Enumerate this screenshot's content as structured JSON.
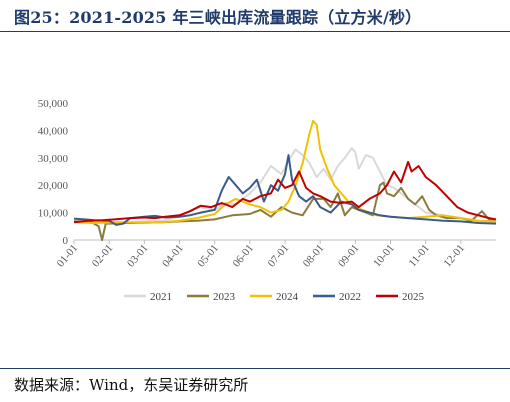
{
  "header": {
    "title": "图25：2021-2025 年三峡出库流量跟踪（立方米/秒）"
  },
  "footer": {
    "source": "数据来源：Wind，东吴证券研究所"
  },
  "chart_data": {
    "type": "line",
    "title": "2021-2025 年三峡出库流量跟踪（立方米/秒）",
    "xlabel": "",
    "ylabel": "",
    "x_categories": [
      "01-01",
      "02-01",
      "03-01",
      "04-01",
      "05-01",
      "06-01",
      "07-01",
      "08-01",
      "09-01",
      "10-01",
      "11-01",
      "12-01"
    ],
    "y_ticks": [
      "0",
      "10,000",
      "20,000",
      "30,000",
      "40,000",
      "50,000"
    ],
    "ylim": [
      0,
      50000
    ],
    "legend_position": "bottom",
    "grid": false,
    "series": [
      {
        "name": "2021",
        "color": "#d9d9d9",
        "points": [
          [
            0,
            7500
          ],
          [
            0.25,
            7200
          ],
          [
            0.5,
            6800
          ],
          [
            1,
            6600
          ],
          [
            1.5,
            6400
          ],
          [
            2,
            6800
          ],
          [
            2.5,
            7000
          ],
          [
            3,
            8500
          ],
          [
            3.3,
            10500
          ],
          [
            3.6,
            12000
          ],
          [
            4,
            11000
          ],
          [
            4.3,
            13500
          ],
          [
            4.6,
            13000
          ],
          [
            5,
            17000
          ],
          [
            5.3,
            21000
          ],
          [
            5.6,
            27000
          ],
          [
            5.9,
            24000
          ],
          [
            6.1,
            29000
          ],
          [
            6.3,
            33000
          ],
          [
            6.5,
            31000
          ],
          [
            6.7,
            28000
          ],
          [
            6.9,
            23000
          ],
          [
            7.1,
            26000
          ],
          [
            7.3,
            22000
          ],
          [
            7.5,
            27000
          ],
          [
            7.7,
            30000
          ],
          [
            7.9,
            33500
          ],
          [
            8.0,
            32000
          ],
          [
            8.1,
            26000
          ],
          [
            8.3,
            31000
          ],
          [
            8.5,
            30000
          ],
          [
            8.7,
            25000
          ],
          [
            8.9,
            20000
          ],
          [
            9.1,
            19000
          ],
          [
            9.3,
            17000
          ],
          [
            9.6,
            14000
          ],
          [
            10,
            10000
          ],
          [
            10.5,
            9000
          ],
          [
            11,
            8000
          ],
          [
            11.5,
            7000
          ],
          [
            12,
            6500
          ]
        ]
      },
      {
        "name": "2023",
        "color": "#8c7b3e",
        "points": [
          [
            0,
            6800
          ],
          [
            0.5,
            6500
          ],
          [
            0.7,
            5000
          ],
          [
            0.8,
            0
          ],
          [
            0.9,
            6000
          ],
          [
            1,
            6000
          ],
          [
            1.5,
            6200
          ],
          [
            2,
            6300
          ],
          [
            2.5,
            6500
          ],
          [
            3,
            6800
          ],
          [
            3.5,
            7000
          ],
          [
            4,
            7500
          ],
          [
            4.5,
            9000
          ],
          [
            5,
            9500
          ],
          [
            5.3,
            11000
          ],
          [
            5.6,
            8500
          ],
          [
            5.9,
            12000
          ],
          [
            6.2,
            10000
          ],
          [
            6.5,
            9000
          ],
          [
            6.8,
            15000
          ],
          [
            7.1,
            15000
          ],
          [
            7.3,
            12000
          ],
          [
            7.5,
            17000
          ],
          [
            7.7,
            9000
          ],
          [
            7.9,
            12000
          ],
          [
            8.1,
            11000
          ],
          [
            8.3,
            10000
          ],
          [
            8.5,
            9000
          ],
          [
            8.7,
            20000
          ],
          [
            8.8,
            21000
          ],
          [
            8.9,
            17000
          ],
          [
            9.1,
            16000
          ],
          [
            9.3,
            19000
          ],
          [
            9.5,
            15000
          ],
          [
            9.7,
            13000
          ],
          [
            9.9,
            16000
          ],
          [
            10.1,
            11000
          ],
          [
            10.3,
            9000
          ],
          [
            10.6,
            8000
          ],
          [
            11,
            8000
          ],
          [
            11.3,
            7000
          ],
          [
            11.6,
            10500
          ],
          [
            11.8,
            7500
          ],
          [
            12,
            6800
          ]
        ]
      },
      {
        "name": "2024",
        "color": "#f5c000",
        "points": [
          [
            0,
            6500
          ],
          [
            0.5,
            6200
          ],
          [
            1,
            6400
          ],
          [
            1.5,
            6500
          ],
          [
            2,
            6300
          ],
          [
            2.5,
            6500
          ],
          [
            3,
            7000
          ],
          [
            3.5,
            8000
          ],
          [
            4,
            9500
          ],
          [
            4.3,
            13000
          ],
          [
            4.6,
            15000
          ],
          [
            5,
            13000
          ],
          [
            5.3,
            12000
          ],
          [
            5.6,
            10000
          ],
          [
            5.9,
            11000
          ],
          [
            6.1,
            14000
          ],
          [
            6.3,
            20000
          ],
          [
            6.5,
            28000
          ],
          [
            6.7,
            39000
          ],
          [
            6.8,
            43500
          ],
          [
            6.9,
            42000
          ],
          [
            7.0,
            33000
          ],
          [
            7.2,
            26000
          ],
          [
            7.4,
            20000
          ],
          [
            7.6,
            17000
          ],
          [
            7.8,
            14000
          ],
          [
            8.0,
            12000
          ],
          [
            8.3,
            10500
          ],
          [
            8.6,
            9000
          ],
          [
            9,
            8500
          ],
          [
            9.5,
            8000
          ],
          [
            10,
            8500
          ],
          [
            10.5,
            9000
          ],
          [
            11,
            8000
          ],
          [
            11.5,
            7000
          ],
          [
            12,
            6800
          ]
        ]
      },
      {
        "name": "2022",
        "color": "#3a5c8c",
        "points": [
          [
            0,
            7800
          ],
          [
            0.3,
            7500
          ],
          [
            0.6,
            7200
          ],
          [
            1,
            7000
          ],
          [
            1.2,
            5500
          ],
          [
            1.4,
            6000
          ],
          [
            1.6,
            8000
          ],
          [
            2,
            8500
          ],
          [
            2.3,
            8800
          ],
          [
            2.6,
            8200
          ],
          [
            3,
            8500
          ],
          [
            3.3,
            9000
          ],
          [
            3.6,
            10000
          ],
          [
            4,
            11000
          ],
          [
            4.2,
            18000
          ],
          [
            4.4,
            23000
          ],
          [
            4.6,
            20000
          ],
          [
            4.8,
            17000
          ],
          [
            5,
            19000
          ],
          [
            5.2,
            22000
          ],
          [
            5.4,
            14000
          ],
          [
            5.6,
            20000
          ],
          [
            5.8,
            18000
          ],
          [
            6.0,
            24000
          ],
          [
            6.1,
            31000
          ],
          [
            6.2,
            22000
          ],
          [
            6.4,
            16000
          ],
          [
            6.6,
            14000
          ],
          [
            6.8,
            16000
          ],
          [
            7.0,
            12000
          ],
          [
            7.3,
            10000
          ],
          [
            7.6,
            14000
          ],
          [
            7.9,
            13000
          ],
          [
            8.1,
            11000
          ],
          [
            8.4,
            10000
          ],
          [
            8.7,
            9000
          ],
          [
            9,
            8500
          ],
          [
            9.5,
            8000
          ],
          [
            10,
            7500
          ],
          [
            10.5,
            7000
          ],
          [
            11,
            6800
          ],
          [
            11.5,
            6200
          ],
          [
            12,
            6000
          ]
        ]
      },
      {
        "name": "2025",
        "color": "#c00000",
        "points": [
          [
            0,
            6500
          ],
          [
            0.4,
            7000
          ],
          [
            0.8,
            7200
          ],
          [
            1.2,
            7600
          ],
          [
            1.6,
            8000
          ],
          [
            2,
            8200
          ],
          [
            2.3,
            8000
          ],
          [
            2.6,
            8500
          ],
          [
            3,
            9000
          ],
          [
            3.3,
            10500
          ],
          [
            3.6,
            12500
          ],
          [
            3.9,
            12000
          ],
          [
            4.2,
            13500
          ],
          [
            4.5,
            12000
          ],
          [
            4.8,
            15000
          ],
          [
            5.0,
            14000
          ],
          [
            5.3,
            16000
          ],
          [
            5.6,
            17000
          ],
          [
            5.8,
            22000
          ],
          [
            6.0,
            19000
          ],
          [
            6.2,
            20000
          ],
          [
            6.4,
            25000
          ],
          [
            6.6,
            19000
          ],
          [
            6.8,
            17000
          ],
          [
            7.0,
            16000
          ],
          [
            7.3,
            14000
          ],
          [
            7.6,
            13500
          ],
          [
            7.9,
            14000
          ],
          [
            8.1,
            12000
          ],
          [
            8.4,
            15000
          ],
          [
            8.7,
            17000
          ],
          [
            8.9,
            20000
          ],
          [
            9.1,
            25000
          ],
          [
            9.3,
            21000
          ],
          [
            9.5,
            28500
          ],
          [
            9.6,
            25000
          ],
          [
            9.8,
            27000
          ],
          [
            10.0,
            23000
          ],
          [
            10.3,
            20000
          ],
          [
            10.6,
            16000
          ],
          [
            10.9,
            12000
          ],
          [
            11.2,
            10000
          ],
          [
            11.5,
            9000
          ],
          [
            11.8,
            8000
          ],
          [
            12,
            7500
          ]
        ]
      }
    ]
  }
}
